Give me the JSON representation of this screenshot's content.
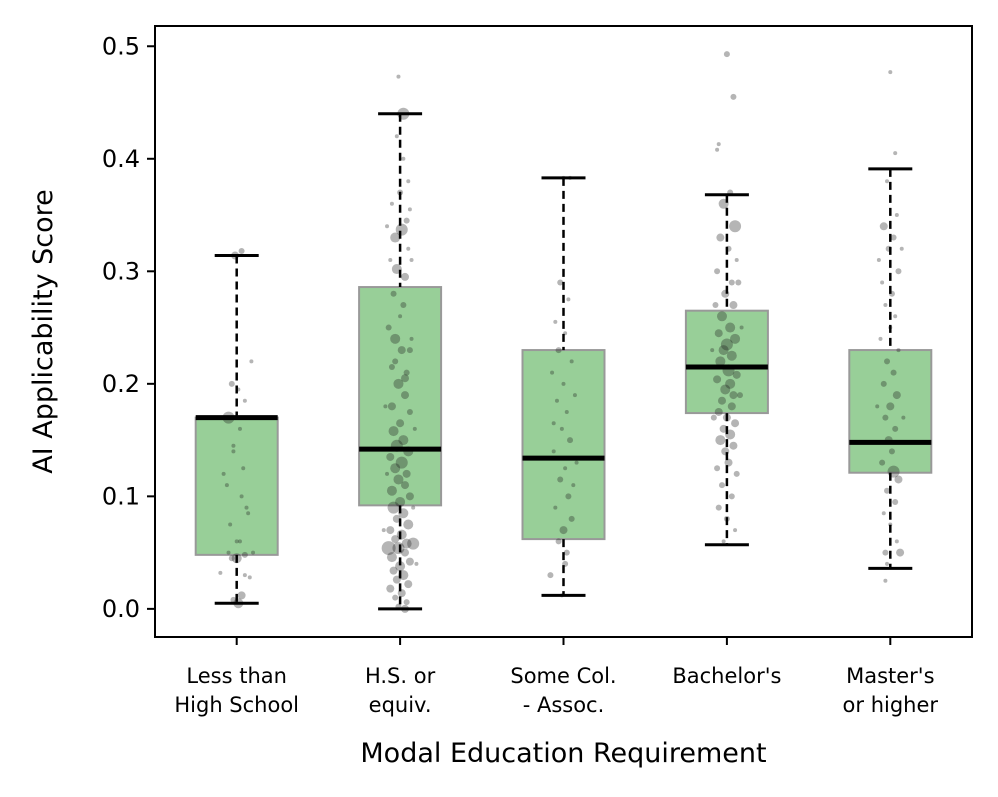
{
  "chart_data": {
    "type": "box",
    "title": "",
    "xlabel": "Modal Education Requirement",
    "ylabel": "AI Applicability Score",
    "ylim": [
      -0.025,
      0.518
    ],
    "yticks": [
      0.0,
      0.1,
      0.2,
      0.3,
      0.4,
      0.5
    ],
    "ytick_labels": [
      "0.0",
      "0.1",
      "0.2",
      "0.3",
      "0.4",
      "0.5"
    ],
    "grid": false,
    "legend": "none",
    "box_color": "#98cf98",
    "box_edge_color": "#999999",
    "median_color": "#000000",
    "point_color": "#1a1a1a",
    "categories": [
      {
        "label_lines": [
          "Less than",
          "High School"
        ],
        "whisker_low": 0.005,
        "q1": 0.048,
        "median": 0.17,
        "q3": 0.17,
        "whisker_high": 0.314
      },
      {
        "label_lines": [
          "H.S. or",
          "equiv."
        ],
        "whisker_low": 0.0,
        "q1": 0.092,
        "median": 0.142,
        "q3": 0.286,
        "whisker_high": 0.44
      },
      {
        "label_lines": [
          "Some Col.",
          "- Assoc."
        ],
        "whisker_low": 0.012,
        "q1": 0.062,
        "median": 0.134,
        "q3": 0.23,
        "whisker_high": 0.383
      },
      {
        "label_lines": [
          "Bachelor's"
        ],
        "whisker_low": 0.057,
        "q1": 0.174,
        "median": 0.215,
        "q3": 0.265,
        "whisker_high": 0.368
      },
      {
        "label_lines": [
          "Master's",
          "or higher"
        ],
        "whisker_low": 0.036,
        "q1": 0.121,
        "median": 0.148,
        "q3": 0.23,
        "whisker_high": 0.391
      }
    ],
    "points": [
      [
        [
          0.01,
          0.005,
          5
        ],
        [
          0.03,
          0.012,
          4
        ],
        [
          -0.02,
          0.008,
          3
        ],
        [
          0.0,
          0.045,
          5
        ],
        [
          0.05,
          0.048,
          3
        ],
        [
          -0.05,
          0.05,
          2
        ],
        [
          0.08,
          0.028,
          2
        ],
        [
          -0.1,
          0.032,
          2
        ],
        [
          0.02,
          0.06,
          2
        ],
        [
          -0.04,
          0.075,
          2
        ],
        [
          0.06,
          0.09,
          2
        ],
        [
          0.03,
          0.1,
          2
        ],
        [
          -0.06,
          0.11,
          2
        ],
        [
          0.04,
          0.125,
          2
        ],
        [
          -0.02,
          0.145,
          2
        ],
        [
          0.02,
          0.16,
          2
        ],
        [
          -0.05,
          0.17,
          6
        ],
        [
          0.05,
          0.185,
          2
        ],
        [
          -0.03,
          0.2,
          3
        ],
        [
          0.0,
          0.06,
          2
        ],
        [
          0.1,
          0.05,
          2
        ],
        [
          0.05,
          0.03,
          2
        ],
        [
          -0.03,
          0.045,
          3
        ],
        [
          -0.01,
          0.314,
          4
        ],
        [
          0.03,
          0.318,
          3
        ],
        [
          0.09,
          0.22,
          2
        ],
        [
          -0.08,
          0.12,
          2
        ],
        [
          0.07,
          0.085,
          2
        ],
        [
          0.01,
          0.195,
          2
        ],
        [
          -0.02,
          0.14,
          2
        ]
      ],
      [
        [
          0.02,
          0.44,
          6
        ],
        [
          -0.01,
          0.473,
          2
        ],
        [
          -0.03,
          0.33,
          5
        ],
        [
          0.01,
          0.337,
          6
        ],
        [
          0.04,
          0.345,
          3
        ],
        [
          -0.05,
          0.36,
          2
        ],
        [
          0.06,
          0.355,
          2
        ],
        [
          0.0,
          0.37,
          3
        ],
        [
          -0.02,
          0.302,
          5
        ],
        [
          0.03,
          0.295,
          4
        ],
        [
          -0.06,
          0.31,
          2
        ],
        [
          0.05,
          0.32,
          2
        ],
        [
          -0.04,
          0.28,
          3
        ],
        [
          0.02,
          0.27,
          3
        ],
        [
          0.0,
          0.26,
          2
        ],
        [
          -0.07,
          0.25,
          3
        ],
        [
          0.07,
          0.24,
          2
        ],
        [
          0.01,
          0.23,
          4
        ],
        [
          -0.03,
          0.22,
          3
        ],
        [
          0.04,
          0.21,
          3
        ],
        [
          -0.01,
          0.2,
          5
        ],
        [
          0.03,
          0.19,
          4
        ],
        [
          -0.05,
          0.18,
          4
        ],
        [
          0.06,
          0.175,
          3
        ],
        [
          0.0,
          0.165,
          4
        ],
        [
          -0.04,
          0.158,
          5
        ],
        [
          0.02,
          0.15,
          5
        ],
        [
          -0.02,
          0.145,
          6
        ],
        [
          0.05,
          0.14,
          5
        ],
        [
          -0.06,
          0.135,
          4
        ],
        [
          0.01,
          0.13,
          6
        ],
        [
          -0.03,
          0.125,
          5
        ],
        [
          0.04,
          0.12,
          4
        ],
        [
          -0.01,
          0.115,
          5
        ],
        [
          0.03,
          0.11,
          4
        ],
        [
          -0.05,
          0.105,
          5
        ],
        [
          0.06,
          0.1,
          4
        ],
        [
          0.0,
          0.095,
          5
        ],
        [
          -0.04,
          0.09,
          6
        ],
        [
          0.02,
          0.085,
          5
        ],
        [
          -0.02,
          0.08,
          4
        ],
        [
          0.05,
          0.075,
          5
        ],
        [
          -0.06,
          0.07,
          4
        ],
        [
          0.01,
          0.066,
          5
        ],
        [
          -0.03,
          0.062,
          4
        ],
        [
          0.04,
          0.058,
          5
        ],
        [
          -0.01,
          0.054,
          6
        ],
        [
          -0.07,
          0.054,
          7
        ],
        [
          0.08,
          0.058,
          6
        ],
        [
          0.03,
          0.05,
          4
        ],
        [
          -0.05,
          0.046,
          5
        ],
        [
          0.06,
          0.042,
          4
        ],
        [
          0.0,
          0.038,
          5
        ],
        [
          -0.04,
          0.034,
          4
        ],
        [
          0.02,
          0.03,
          5
        ],
        [
          -0.02,
          0.026,
          4
        ],
        [
          0.05,
          0.022,
          4
        ],
        [
          -0.06,
          0.018,
          4
        ],
        [
          0.01,
          0.014,
          4
        ],
        [
          -0.03,
          0.01,
          3
        ],
        [
          0.04,
          0.006,
          3
        ],
        [
          -0.01,
          0.002,
          3
        ],
        [
          0.03,
          0.0,
          4
        ],
        [
          -0.09,
          0.18,
          2
        ],
        [
          0.09,
          0.16,
          2
        ],
        [
          -0.08,
          0.12,
          2
        ],
        [
          0.08,
          0.09,
          2
        ],
        [
          -0.1,
          0.07,
          2
        ],
        [
          0.1,
          0.04,
          2
        ],
        [
          0.07,
          0.31,
          2
        ],
        [
          -0.08,
          0.34,
          2
        ],
        [
          0.02,
          0.4,
          2
        ],
        [
          -0.02,
          0.42,
          2
        ],
        [
          0.05,
          0.38,
          2
        ],
        [
          -0.03,
          0.24,
          5
        ],
        [
          0.06,
          0.23,
          3
        ],
        [
          -0.05,
          0.215,
          3
        ],
        [
          0.03,
          0.205,
          4
        ]
      ],
      [
        [
          0.0,
          0.383,
          2
        ],
        [
          0.04,
          0.383,
          2
        ],
        [
          -0.02,
          0.29,
          3
        ],
        [
          0.03,
          0.275,
          2
        ],
        [
          -0.05,
          0.255,
          2
        ],
        [
          0.01,
          0.245,
          2
        ],
        [
          -0.03,
          0.23,
          3
        ],
        [
          0.05,
          0.22,
          2
        ],
        [
          0.0,
          0.2,
          2
        ],
        [
          -0.04,
          0.185,
          2
        ],
        [
          0.02,
          0.175,
          2
        ],
        [
          -0.01,
          0.16,
          2
        ],
        [
          0.04,
          0.15,
          3
        ],
        [
          -0.06,
          0.14,
          2
        ],
        [
          0.01,
          0.125,
          2
        ],
        [
          -0.02,
          0.115,
          3
        ],
        [
          0.03,
          0.1,
          3
        ],
        [
          -0.05,
          0.09,
          2
        ],
        [
          0.05,
          0.08,
          3
        ],
        [
          0.0,
          0.07,
          4
        ],
        [
          -0.03,
          0.06,
          3
        ],
        [
          0.02,
          0.05,
          3
        ],
        [
          -0.08,
          0.03,
          3
        ],
        [
          0.01,
          0.04,
          3
        ],
        [
          -0.01,
          0.012,
          2
        ],
        [
          0.06,
          0.11,
          2
        ],
        [
          -0.06,
          0.165,
          2
        ],
        [
          0.07,
          0.19,
          2
        ],
        [
          -0.07,
          0.21,
          2
        ],
        [
          0.08,
          0.13,
          2
        ]
      ],
      [
        [
          0.0,
          0.493,
          3
        ],
        [
          0.04,
          0.455,
          3
        ],
        [
          -0.05,
          0.413,
          2
        ],
        [
          -0.06,
          0.408,
          2
        ],
        [
          0.02,
          0.37,
          3
        ],
        [
          -0.02,
          0.36,
          5
        ],
        [
          0.05,
          0.34,
          6
        ],
        [
          -0.04,
          0.33,
          4
        ],
        [
          0.01,
          0.32,
          3
        ],
        [
          0.06,
          0.31,
          2
        ],
        [
          -0.06,
          0.3,
          3
        ],
        [
          0.03,
          0.29,
          3
        ],
        [
          -0.01,
          0.28,
          4
        ],
        [
          0.04,
          0.27,
          4
        ],
        [
          -0.03,
          0.26,
          5
        ],
        [
          0.02,
          0.25,
          5
        ],
        [
          -0.05,
          0.245,
          4
        ],
        [
          0.05,
          0.24,
          5
        ],
        [
          0.0,
          0.235,
          6
        ],
        [
          -0.02,
          0.23,
          5
        ],
        [
          0.03,
          0.225,
          5
        ],
        [
          -0.04,
          0.22,
          5
        ],
        [
          0.01,
          0.212,
          6
        ],
        [
          0.06,
          0.208,
          4
        ],
        [
          -0.06,
          0.204,
          4
        ],
        [
          0.02,
          0.2,
          5
        ],
        [
          -0.01,
          0.195,
          5
        ],
        [
          0.04,
          0.19,
          4
        ],
        [
          -0.03,
          0.185,
          4
        ],
        [
          0.03,
          0.18,
          4
        ],
        [
          -0.05,
          0.175,
          4
        ],
        [
          0.0,
          0.17,
          4
        ],
        [
          0.05,
          0.165,
          4
        ],
        [
          -0.02,
          0.16,
          4
        ],
        [
          0.02,
          0.155,
          5
        ],
        [
          -0.04,
          0.15,
          5
        ],
        [
          0.04,
          0.145,
          4
        ],
        [
          -0.01,
          0.14,
          4
        ],
        [
          0.01,
          0.13,
          4
        ],
        [
          -0.06,
          0.125,
          3
        ],
        [
          0.06,
          0.12,
          3
        ],
        [
          -0.03,
          0.11,
          3
        ],
        [
          0.03,
          0.1,
          3
        ],
        [
          -0.05,
          0.09,
          3
        ],
        [
          0.0,
          0.08,
          3
        ],
        [
          0.05,
          0.07,
          2
        ],
        [
          -0.02,
          0.06,
          2
        ],
        [
          0.07,
          0.29,
          3
        ],
        [
          -0.07,
          0.27,
          3
        ],
        [
          0.08,
          0.19,
          3
        ],
        [
          -0.08,
          0.17,
          3
        ],
        [
          0.09,
          0.25,
          2
        ],
        [
          -0.09,
          0.23,
          2
        ]
      ],
      [
        [
          0.0,
          0.477,
          2
        ],
        [
          0.03,
          0.405,
          2
        ],
        [
          -0.02,
          0.38,
          2
        ],
        [
          0.04,
          0.35,
          2
        ],
        [
          -0.04,
          0.34,
          4
        ],
        [
          0.02,
          0.33,
          3
        ],
        [
          -0.01,
          0.32,
          3
        ],
        [
          0.05,
          0.3,
          3
        ],
        [
          -0.05,
          0.29,
          2
        ],
        [
          0.01,
          0.28,
          3
        ],
        [
          -0.03,
          0.27,
          2
        ],
        [
          0.03,
          0.26,
          2
        ],
        [
          0.0,
          0.25,
          2
        ],
        [
          -0.06,
          0.24,
          2
        ],
        [
          0.05,
          0.23,
          2
        ],
        [
          -0.02,
          0.22,
          3
        ],
        [
          0.02,
          0.21,
          3
        ],
        [
          -0.04,
          0.2,
          3
        ],
        [
          0.04,
          0.19,
          4
        ],
        [
          0.0,
          0.18,
          4
        ],
        [
          -0.03,
          0.17,
          3
        ],
        [
          0.03,
          0.16,
          3
        ],
        [
          -0.01,
          0.15,
          4
        ],
        [
          0.01,
          0.14,
          3
        ],
        [
          -0.05,
          0.13,
          3
        ],
        [
          0.02,
          0.122,
          6
        ],
        [
          0.05,
          0.115,
          4
        ],
        [
          -0.02,
          0.105,
          3
        ],
        [
          0.03,
          0.095,
          3
        ],
        [
          -0.04,
          0.085,
          2
        ],
        [
          0.0,
          0.075,
          2
        ],
        [
          0.04,
          0.06,
          2
        ],
        [
          -0.03,
          0.05,
          3
        ],
        [
          0.06,
          0.05,
          4
        ],
        [
          -0.02,
          0.04,
          2
        ],
        [
          -0.03,
          0.025,
          2
        ],
        [
          0.08,
          0.17,
          2
        ],
        [
          -0.08,
          0.18,
          2
        ],
        [
          0.07,
          0.32,
          2
        ],
        [
          -0.07,
          0.31,
          2
        ]
      ]
    ]
  }
}
